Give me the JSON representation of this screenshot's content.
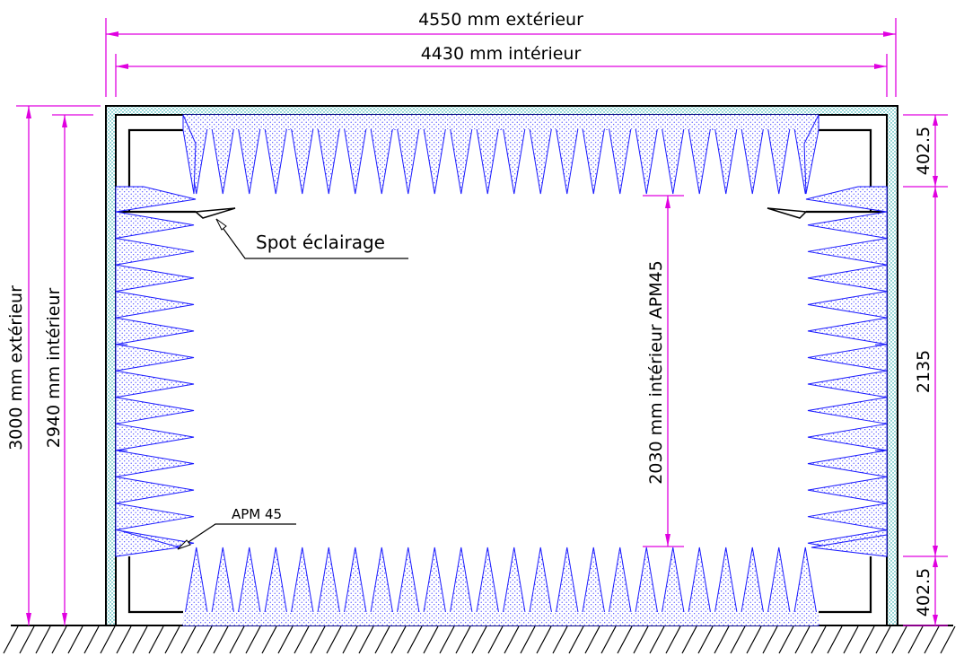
{
  "dimensions": {
    "outer_width": "4550 mm extérieur",
    "inner_width": "4430 mm intérieur",
    "outer_height": "3000 mm extérieur",
    "inner_height": "2940 mm intérieur",
    "apm_inner_height": "2030 mm intérieur APM45",
    "right_top": "402.5",
    "right_middle": "2135",
    "right_bottom": "402.5"
  },
  "labels": {
    "spot": "Spot éclairage",
    "apm": "APM 45"
  },
  "colors": {
    "dimension": "#e000e0",
    "absorber": "#1a1aff",
    "wall": "#000000",
    "insulation": "#00a0a0"
  }
}
